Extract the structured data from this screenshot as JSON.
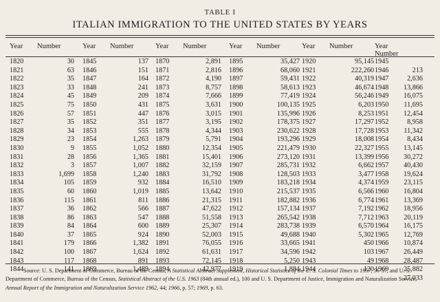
{
  "table_label": "TABLE I",
  "title": "ITALIAN IMMIGRATION TO THE UNITED STATES BY YEARS",
  "headers": {
    "year": "Year",
    "number": "Number"
  },
  "columns": [
    {
      "rows": [
        [
          "1820",
          "30"
        ],
        [
          "1821",
          "63"
        ],
        [
          "1822",
          "35"
        ],
        [
          "1823",
          "33"
        ],
        [
          "1824",
          "45"
        ],
        [
          "1825",
          "75"
        ],
        [
          "1826",
          "57"
        ],
        [
          "1827",
          "35"
        ],
        [
          "1828",
          "34"
        ],
        [
          "1829",
          "23"
        ],
        [
          "1830",
          "9"
        ],
        [
          "1831",
          "28"
        ],
        [
          "1832",
          "3"
        ],
        [
          "1833",
          "1,699"
        ],
        [
          "1834",
          "105"
        ],
        [
          "1835",
          "60"
        ],
        [
          "1836",
          "115"
        ],
        [
          "1837",
          "36"
        ],
        [
          "1838",
          "86"
        ],
        [
          "1839",
          "84"
        ],
        [
          "1840",
          "37"
        ],
        [
          "1841",
          "179"
        ],
        [
          "1842",
          "100"
        ],
        [
          "1843",
          "117"
        ],
        [
          "1844",
          "141"
        ]
      ]
    },
    {
      "rows": [
        [
          "1845",
          "137"
        ],
        [
          "1846",
          "151"
        ],
        [
          "1847",
          "164"
        ],
        [
          "1848",
          "241"
        ],
        [
          "1849",
          "209"
        ],
        [
          "1850",
          "431"
        ],
        [
          "1851",
          "447"
        ],
        [
          "1852",
          "351"
        ],
        [
          "1853",
          "555"
        ],
        [
          "1854",
          "1,263"
        ],
        [
          "1855",
          "1,052"
        ],
        [
          "1856",
          "1,365"
        ],
        [
          "1857",
          "1,007"
        ],
        [
          "1858",
          "1,240"
        ],
        [
          "1859",
          "932"
        ],
        [
          "1860",
          "1,019"
        ],
        [
          "1861",
          "811"
        ],
        [
          "1862",
          "566"
        ],
        [
          "1863",
          "547"
        ],
        [
          "1864",
          "600"
        ],
        [
          "1865",
          "924"
        ],
        [
          "1866",
          "1,382"
        ],
        [
          "1867",
          "1,624"
        ],
        [
          "1868",
          "891"
        ],
        [
          "1869",
          "1,489"
        ]
      ]
    },
    {
      "rows": [
        [
          "1870",
          "2,891"
        ],
        [
          "1871",
          "2,816"
        ],
        [
          "1872",
          "4,190"
        ],
        [
          "1873",
          "8,757"
        ],
        [
          "1874",
          "7,666"
        ],
        [
          "1875",
          "3,631"
        ],
        [
          "1876",
          "3,015"
        ],
        [
          "1877",
          "3,195"
        ],
        [
          "1878",
          "4,344"
        ],
        [
          "1879",
          "5,791"
        ],
        [
          "1880",
          "12,354"
        ],
        [
          "1881",
          "15,401"
        ],
        [
          "1882",
          "32,159"
        ],
        [
          "1883",
          "31,792"
        ],
        [
          "1884",
          "16,510"
        ],
        [
          "1885",
          "13,642"
        ],
        [
          "1886",
          "21,315"
        ],
        [
          "1887",
          "47,622"
        ],
        [
          "1888",
          "51,558"
        ],
        [
          "1889",
          "25,307"
        ],
        [
          "1890",
          "52,003"
        ],
        [
          "1891",
          "76,055"
        ],
        [
          "1892",
          "61,631"
        ],
        [
          "1893",
          "72,145"
        ],
        [
          "1894",
          "42,977"
        ]
      ]
    },
    {
      "rows": [
        [
          "1895",
          "35,427"
        ],
        [
          "1896",
          "68,060"
        ],
        [
          "1897",
          "59,431"
        ],
        [
          "1898",
          "58,613"
        ],
        [
          "1899",
          "77,419"
        ],
        [
          "1900",
          "100,135"
        ],
        [
          "1901",
          "135,996"
        ],
        [
          "1902",
          "178,375"
        ],
        [
          "1903",
          "230,622"
        ],
        [
          "1904",
          "193,296"
        ],
        [
          "1905",
          "221,479"
        ],
        [
          "1906",
          "273,120"
        ],
        [
          "1907",
          "285,731"
        ],
        [
          "1908",
          "128,503"
        ],
        [
          "1909",
          "183,218"
        ],
        [
          "1910",
          "215,537"
        ],
        [
          "1911",
          "182,882"
        ],
        [
          "1912",
          "157,134"
        ],
        [
          "1913",
          "265,542"
        ],
        [
          "1914",
          "283,738"
        ],
        [
          "1915",
          "49,688"
        ],
        [
          "1916",
          "33,665"
        ],
        [
          "1917",
          "34,596"
        ],
        [
          "1918",
          "5,250"
        ],
        [
          "1919",
          "1,884"
        ]
      ]
    },
    {
      "rows": [
        [
          "1920",
          "95,145"
        ],
        [
          "1921",
          "222,260"
        ],
        [
          "1922",
          "40,319"
        ],
        [
          "1923",
          "46,674"
        ],
        [
          "1924",
          "56,246"
        ],
        [
          "1925",
          "6,203"
        ],
        [
          "1926",
          "8,253"
        ],
        [
          "1927",
          "17,297"
        ],
        [
          "1928",
          "17,728"
        ],
        [
          "1929",
          "18,008"
        ],
        [
          "1930",
          "22,327"
        ],
        [
          "1931",
          "13,399"
        ],
        [
          "1932",
          "6,662"
        ],
        [
          "1933",
          "3,477"
        ],
        [
          "1934",
          "4,374"
        ],
        [
          "1935",
          "6,566"
        ],
        [
          "1936",
          "6,774"
        ],
        [
          "1937",
          "7,192"
        ],
        [
          "1938",
          "7,712"
        ],
        [
          "1939",
          "6,570"
        ],
        [
          "1940",
          "5,302"
        ],
        [
          "1941",
          "450"
        ],
        [
          "1942",
          "103"
        ],
        [
          "1943",
          "49"
        ],
        [
          "1944",
          "120"
        ]
      ]
    },
    {
      "rows": [
        [
          "1945",
          "213"
        ],
        [
          "1946",
          "2,636"
        ],
        [
          "1947",
          "13,866"
        ],
        [
          "1948",
          "16,075"
        ],
        [
          "1949",
          "11,695"
        ],
        [
          "1950",
          "12,454"
        ],
        [
          "1951",
          "8,958"
        ],
        [
          "1952",
          "11,342"
        ],
        [
          "1953",
          "8,434"
        ],
        [
          "1954",
          "13,145"
        ],
        [
          "1955",
          "30,272"
        ],
        [
          "1956",
          "40,430"
        ],
        [
          "1957",
          "19,624"
        ],
        [
          "1958",
          "23,115"
        ],
        [
          "1959",
          "16,804"
        ],
        [
          "1960",
          "13,369"
        ],
        [
          "1961",
          "18,956"
        ],
        [
          "1962",
          "20,119"
        ],
        [
          "1963",
          "16,175"
        ],
        [
          "1964",
          "12,769"
        ],
        [
          "1965",
          "10,874"
        ],
        [
          "1966",
          "26,449"
        ],
        [
          "1967",
          "28,487"
        ],
        [
          "1968",
          "25,882"
        ],
        [
          "1969",
          "27,033"
        ]
      ]
    }
  ],
  "source": {
    "t1": "Source: U. S. Department of Commerce, Bureau of the Census, ",
    "i1": "A Statistical Abstract Supplement, Historical Statistics of the U. S. Colonial Times to 1957",
    "t2": ", 56-57, and U. S. Department of Commerce, Bureau of the Census, ",
    "i2": "Statistical Abstract of the U.S. 1963",
    "t3": " (84th annual ed.), 100 and U. S. Department of Justice, Immigration and Naturalization Service, ",
    "i3": "Annual Report of the Immigration and Naturalization Service 1962",
    "t4": ", 44; ",
    "i4": "1966",
    "t5": ", p. 57; ",
    "i5": "1969",
    "t6": ", p. 63."
  }
}
